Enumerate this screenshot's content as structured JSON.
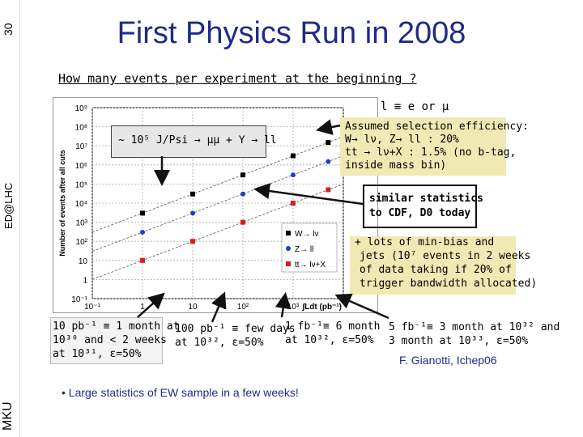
{
  "slide": {
    "page_number": "30",
    "side_label_top": "ED@LHC",
    "side_label_bottom": "MKU",
    "title": "First Physics Run in 2008",
    "question": "How many events per experiment at the beginning ?",
    "lepton_def": "l ≡ e or μ",
    "jpsi_note": "~ 10⁵ J/Psi → μμ + Υ → ll",
    "selection_box": [
      "Assumed selection efficiency:",
      "W→ lν, Z→ ll : 20%",
      "tt → lν+X : 1.5% (no b-tag,",
      "inside mass bin)"
    ],
    "similar_stats": [
      "similar statistics",
      "to CDF, D0 today"
    ],
    "minbias": [
      "+ lots of min-bias and",
      "jets (10⁷ events in 2 weeks",
      "of data taking if 20% of",
      "trigger bandwidth allocated)"
    ],
    "lumi_10": [
      "10 pb⁻¹ ≡ 1 month at",
      "10³⁰ and < 2 weeks",
      "at 10³¹, ε=50%"
    ],
    "lumi_100": [
      "100 pb⁻¹ ≡ few days",
      "at 10³², ε=50%"
    ],
    "lumi_1fb": [
      "1 fb⁻¹≡ 6 month",
      "at 10³², ε=50%"
    ],
    "lumi_5fb": [
      "5 fb⁻¹≡ 3 month at 10³² and",
      "3 month at 10³³, ε=50%"
    ],
    "credit": "F. Gianotti, Ichep06",
    "bullet": "• Large statistics of EW sample in a few weeks!"
  },
  "chart_data": {
    "type": "scatter",
    "ylabel": "Number of events after all cuts",
    "xlabel": "∫Ldt (pb⁻¹)",
    "x_log": true,
    "y_log": true,
    "xlim": [
      0.1,
      10000
    ],
    "ylim": [
      0.1,
      1000000000
    ],
    "x_ticks": [
      "10⁻¹",
      "1",
      "10",
      "10²",
      "10³"
    ],
    "y_ticks": [
      "10⁹",
      "10⁸",
      "10⁷",
      "10⁶",
      "10⁵",
      "10⁴",
      "10³",
      "10²",
      "10",
      "1",
      "10⁻¹"
    ],
    "series": [
      {
        "name": "W→ lν",
        "color": "#000000",
        "x": [
          1,
          10,
          100,
          1000,
          5000
        ],
        "y": [
          3000,
          30000,
          300000,
          3000000,
          15000000
        ]
      },
      {
        "name": "Z→ ll",
        "color": "#1e3ccf",
        "x": [
          1,
          10,
          100,
          1000,
          5000
        ],
        "y": [
          300,
          3000,
          30000,
          300000,
          1500000
        ]
      },
      {
        "name": "tt→ lν+X",
        "color": "#e01a1a",
        "x": [
          1,
          10,
          100,
          1000,
          5000
        ],
        "y": [
          10,
          100,
          1000,
          10000,
          50000
        ]
      }
    ]
  }
}
